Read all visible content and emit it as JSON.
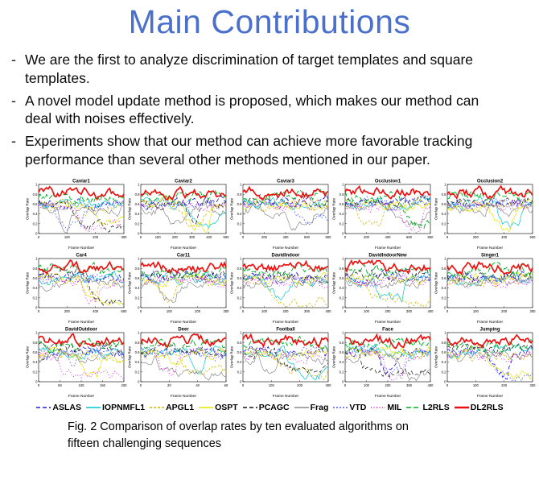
{
  "title": "Main Contributions",
  "bullets": [
    {
      "marker": "-",
      "text": "We are the first to analyze discrimination of target templates and square\ntemplates."
    },
    {
      "marker": "-",
      "text": "A novel model update method is proposed, which makes our method can\ndeal with noises effectively."
    },
    {
      "marker": "-",
      "text": "Experiments show that our method can achieve more favorable tracking\nperformance than several other methods mentioned in our paper."
    }
  ],
  "figure": {
    "caption": "Fig. 2 Comparison of overlap rates by ten evaluated algorithms on\nfifteen challenging sequences",
    "ylabel": "Overlap Rate",
    "xlabel": "Frame Number",
    "yticks": [
      0,
      0.2,
      0.4,
      0.6,
      0.8,
      1
    ],
    "plots": [
      {
        "title": "Caviar1",
        "seed": 101,
        "xticks": [
          0,
          100,
          200,
          300
        ]
      },
      {
        "title": "Caviar2",
        "seed": 202,
        "xticks": [
          0,
          100,
          200,
          300,
          400,
          500
        ]
      },
      {
        "title": "Caviar3",
        "seed": 303,
        "xticks": [
          0,
          200,
          400,
          600,
          800
        ]
      },
      {
        "title": "Occlusion1",
        "seed": 404,
        "xticks": [
          0,
          200,
          400,
          600,
          800
        ]
      },
      {
        "title": "Occlusion2",
        "seed": 505,
        "xticks": [
          0,
          200,
          400,
          600
        ]
      },
      {
        "title": "Car4",
        "seed": 606,
        "xticks": [
          0,
          200,
          400,
          600
        ]
      },
      {
        "title": "Car11",
        "seed": 707,
        "xticks": [
          0,
          100,
          200,
          300
        ]
      },
      {
        "title": "DavidIndoor",
        "seed": 808,
        "xticks": [
          0,
          100,
          200,
          300,
          400
        ]
      },
      {
        "title": "DavidIndoorNew",
        "seed": 909,
        "xticks": [
          0,
          100,
          200,
          300,
          400
        ]
      },
      {
        "title": "Singer1",
        "seed": 111,
        "xticks": [
          0,
          100,
          200,
          300
        ]
      },
      {
        "title": "DavidOutdoor",
        "seed": 222,
        "xticks": [
          0,
          50,
          100,
          150,
          200
        ]
      },
      {
        "title": "Deer",
        "seed": 333,
        "xticks": [
          0,
          20,
          40,
          60
        ]
      },
      {
        "title": "Football",
        "seed": 444,
        "xticks": [
          0,
          100,
          200,
          300
        ]
      },
      {
        "title": "Face",
        "seed": 555,
        "xticks": [
          0,
          100,
          200,
          300,
          400
        ]
      },
      {
        "title": "Jumping",
        "seed": 666,
        "xticks": [
          0,
          100,
          200,
          300
        ]
      }
    ],
    "algorithms": [
      {
        "name": "ASLAS",
        "color": "#1a1aee",
        "dash": "5 3",
        "width": 1.2,
        "base": 0.62,
        "drop": 0.5
      },
      {
        "name": "IOPNMFL1",
        "color": "#00c8d0",
        "dash": "",
        "width": 1.0,
        "base": 0.6,
        "drop": 0.45
      },
      {
        "name": "APGL1",
        "color": "#d4b800",
        "dash": "3 2",
        "width": 1.0,
        "base": 0.55,
        "drop": 0.5
      },
      {
        "name": "OSPT",
        "color": "#e6e600",
        "dash": "",
        "width": 1.0,
        "base": 0.58,
        "drop": 0.45
      },
      {
        "name": "PCAGC",
        "color": "#141414",
        "dash": "5 3",
        "width": 1.0,
        "base": 0.65,
        "drop": 0.4
      },
      {
        "name": "Frag",
        "color": "#8a8a8a",
        "dash": "",
        "width": 1.0,
        "base": 0.5,
        "drop": 0.55
      },
      {
        "name": "VTD",
        "color": "#4a5cff",
        "dash": "2 2",
        "width": 1.0,
        "base": 0.6,
        "drop": 0.45
      },
      {
        "name": "MIL",
        "color": "#ee00ee",
        "dash": "1 2.5",
        "width": 1.2,
        "base": 0.55,
        "drop": 0.5
      },
      {
        "name": "L2RLS",
        "color": "#00b42a",
        "dash": "6 3",
        "width": 1.4,
        "base": 0.76,
        "drop": 0.15
      },
      {
        "name": "DL2RLS",
        "color": "#ee1010",
        "dash": "",
        "width": 2.4,
        "base": 0.83,
        "drop": 0.05
      }
    ]
  },
  "chart_data": {
    "type": "line",
    "title": "Fig. 2 Comparison of overlap rates by ten evaluated algorithms on fifteen challenging sequences",
    "xlabel": "Frame Number",
    "ylabel": "Overlap Rate",
    "ylim": [
      0,
      1
    ],
    "grid": false,
    "legend_position": "bottom",
    "legend": [
      "ASLAS",
      "IOPNMFL1",
      "APGL1",
      "OSPT",
      "PCAGC",
      "Frag",
      "VTD",
      "MIL",
      "L2RLS",
      "DL2RLS"
    ],
    "subplots": [
      "Caviar1",
      "Caviar2",
      "Caviar3",
      "Occlusion1",
      "Occlusion2",
      "Car4",
      "Car11",
      "DavidIndoor",
      "DavidIndoorNew",
      "Singer1",
      "DavidOutdoor",
      "Deer",
      "Football",
      "Face",
      "Jumping"
    ]
  }
}
